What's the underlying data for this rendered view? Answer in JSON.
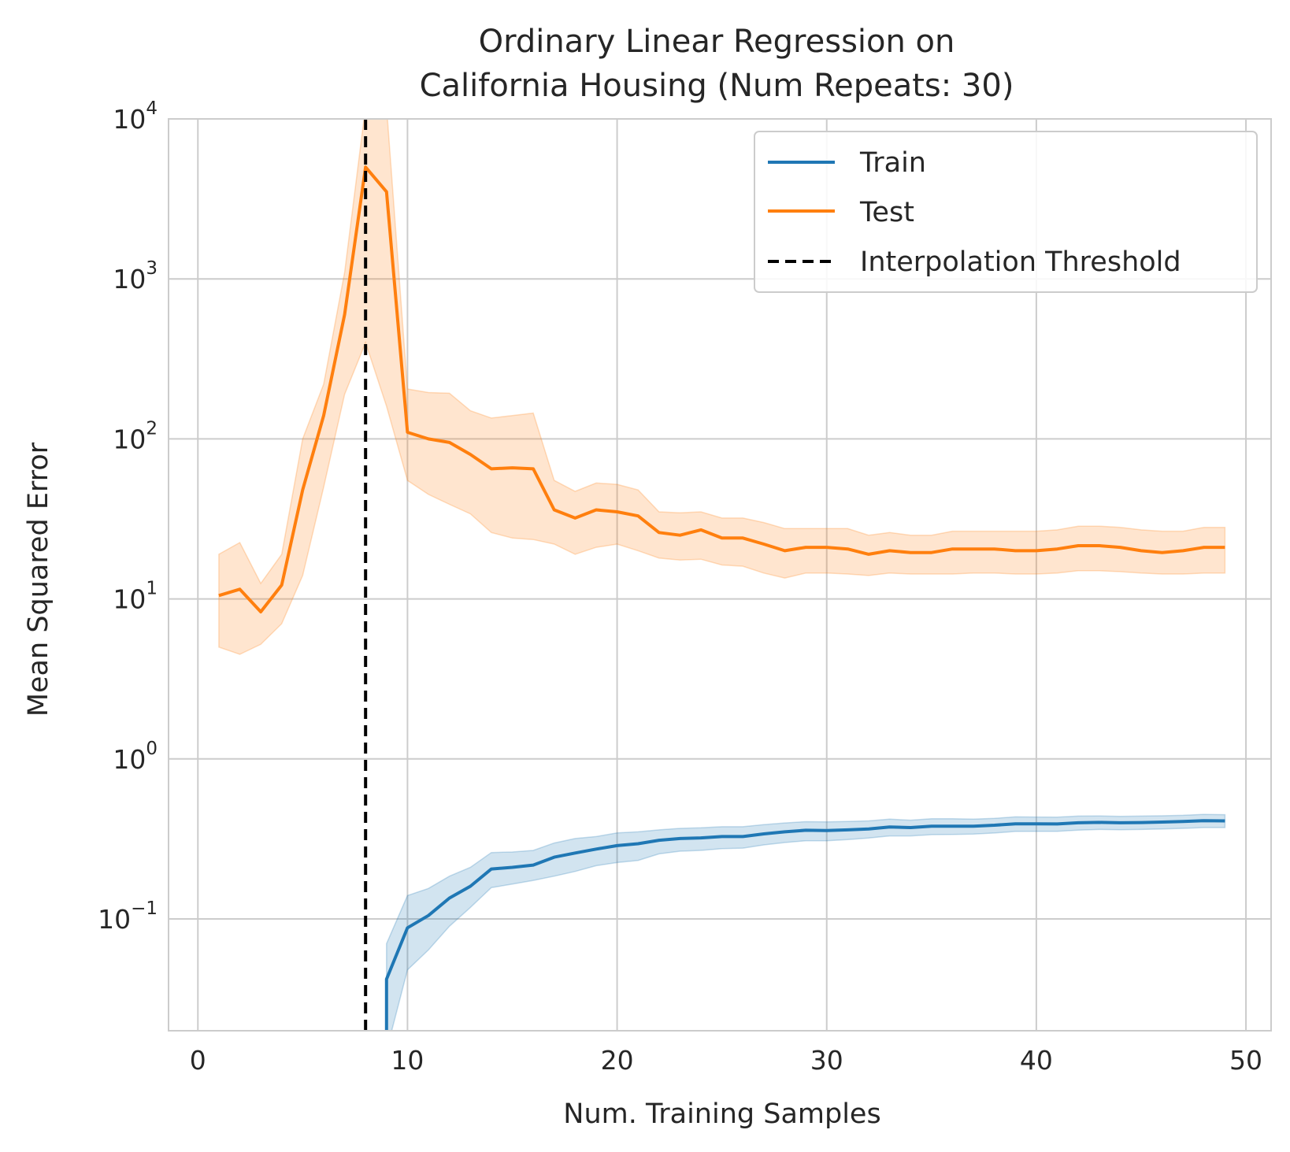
{
  "chart_data": {
    "type": "line",
    "title_lines": [
      "Ordinary Linear Regression on",
      "California Housing (Num Repeats: 30)"
    ],
    "xlabel": "Num. Training Samples",
    "ylabel": "Mean Squared Error",
    "yscale": "log",
    "xlim": [
      -1.4,
      51.2
    ],
    "ylim": [
      0.02,
      10000
    ],
    "x_ticks": [
      {
        "value": 0,
        "label": "0"
      },
      {
        "value": 10,
        "label": "10"
      },
      {
        "value": 20,
        "label": "20"
      },
      {
        "value": 30,
        "label": "30"
      },
      {
        "value": 40,
        "label": "40"
      },
      {
        "value": 50,
        "label": "50"
      }
    ],
    "y_ticks": [
      {
        "value": 0.1,
        "base": "10",
        "exp": "−1"
      },
      {
        "value": 1,
        "base": "10",
        "exp": "0"
      },
      {
        "value": 10,
        "base": "10",
        "exp": "1"
      },
      {
        "value": 100,
        "base": "10",
        "exp": "2"
      },
      {
        "value": 1000,
        "base": "10",
        "exp": "3"
      },
      {
        "value": 10000,
        "base": "10",
        "exp": "4"
      }
    ],
    "grid": true,
    "legend_position": "top-right",
    "series": [
      {
        "name": "Train",
        "color": "#1f77b4",
        "x": [
          9,
          9,
          10,
          11,
          12,
          13,
          14,
          15,
          16,
          17,
          18,
          19,
          20,
          21,
          22,
          23,
          24,
          25,
          26,
          27,
          28,
          29,
          30,
          31,
          32,
          33,
          34,
          35,
          36,
          37,
          38,
          39,
          40,
          41,
          42,
          43,
          44,
          45,
          46,
          47,
          48,
          49
        ],
        "y": [
          0.005,
          0.042,
          0.088,
          0.105,
          0.135,
          0.16,
          0.205,
          0.21,
          0.217,
          0.243,
          0.258,
          0.273,
          0.287,
          0.295,
          0.31,
          0.318,
          0.321,
          0.327,
          0.327,
          0.34,
          0.35,
          0.358,
          0.357,
          0.36,
          0.365,
          0.375,
          0.372,
          0.38,
          0.38,
          0.38,
          0.385,
          0.393,
          0.393,
          0.392,
          0.399,
          0.401,
          0.399,
          0.4,
          0.403,
          0.406,
          0.411,
          0.41
        ],
        "lower": [
          0.003,
          0.015,
          0.048,
          0.064,
          0.09,
          0.118,
          0.157,
          0.165,
          0.174,
          0.185,
          0.198,
          0.215,
          0.225,
          0.232,
          0.255,
          0.265,
          0.268,
          0.275,
          0.277,
          0.29,
          0.3,
          0.308,
          0.308,
          0.313,
          0.32,
          0.33,
          0.33,
          0.336,
          0.337,
          0.339,
          0.344,
          0.352,
          0.353,
          0.353,
          0.359,
          0.362,
          0.361,
          0.362,
          0.365,
          0.368,
          0.372,
          0.372
        ],
        "upper": [
          0.008,
          0.07,
          0.14,
          0.155,
          0.185,
          0.21,
          0.26,
          0.262,
          0.268,
          0.298,
          0.318,
          0.327,
          0.345,
          0.35,
          0.36,
          0.368,
          0.371,
          0.377,
          0.377,
          0.388,
          0.398,
          0.405,
          0.404,
          0.406,
          0.41,
          0.42,
          0.414,
          0.423,
          0.423,
          0.42,
          0.425,
          0.434,
          0.433,
          0.432,
          0.439,
          0.44,
          0.437,
          0.439,
          0.441,
          0.444,
          0.45,
          0.448
        ]
      },
      {
        "name": "Test",
        "color": "#ff7f0e",
        "x": [
          1,
          2,
          3,
          4,
          5,
          6,
          7,
          8,
          9,
          10,
          11,
          12,
          13,
          14,
          15,
          16,
          17,
          18,
          19,
          20,
          21,
          22,
          23,
          24,
          25,
          26,
          27,
          28,
          29,
          30,
          31,
          32,
          33,
          34,
          35,
          36,
          37,
          38,
          39,
          40,
          41,
          42,
          43,
          44,
          45,
          46,
          47,
          48,
          49
        ],
        "y": [
          10.5,
          11.5,
          8.3,
          12.2,
          48,
          140,
          600,
          5000,
          3500,
          110,
          100,
          95,
          80,
          65,
          66,
          65,
          36,
          32,
          36,
          35,
          33,
          26,
          25,
          27,
          24,
          24,
          22,
          20,
          21,
          21,
          20.5,
          19,
          20,
          19.5,
          19.5,
          20.5,
          20.5,
          20.5,
          20,
          20,
          20.5,
          21.5,
          21.5,
          21,
          20,
          19.5,
          20,
          21,
          21
        ],
        "lower": [
          5,
          4.5,
          5.2,
          7,
          14,
          50,
          190,
          400,
          160,
          55,
          45,
          39,
          34,
          26,
          24,
          23.5,
          22,
          19,
          21,
          22,
          20,
          18,
          17.5,
          17.7,
          16.3,
          16,
          14.5,
          13.5,
          14.5,
          14.5,
          14.3,
          14,
          14.5,
          14.3,
          14.3,
          14.3,
          14.5,
          14.5,
          14.3,
          14.3,
          14.5,
          15,
          15,
          14.8,
          14.5,
          14.3,
          14.3,
          14.5,
          14.5
        ],
        "upper": [
          19,
          22.5,
          12.5,
          19,
          100,
          220,
          1100,
          12000,
          12000,
          205,
          195,
          193,
          150,
          135,
          140,
          145,
          55,
          47,
          53,
          52,
          48,
          35,
          34.5,
          35,
          32,
          32,
          30,
          27.5,
          27.5,
          27.5,
          27.5,
          25,
          26,
          25,
          25,
          26.5,
          26.5,
          26.5,
          26.5,
          26.5,
          27,
          28.5,
          28.5,
          28,
          27,
          26.5,
          26.5,
          28,
          28
        ]
      },
      {
        "name": "Interpolation Threshold",
        "color": "#000000",
        "style": "dashed",
        "type": "vline",
        "x_value": 8
      }
    ]
  }
}
